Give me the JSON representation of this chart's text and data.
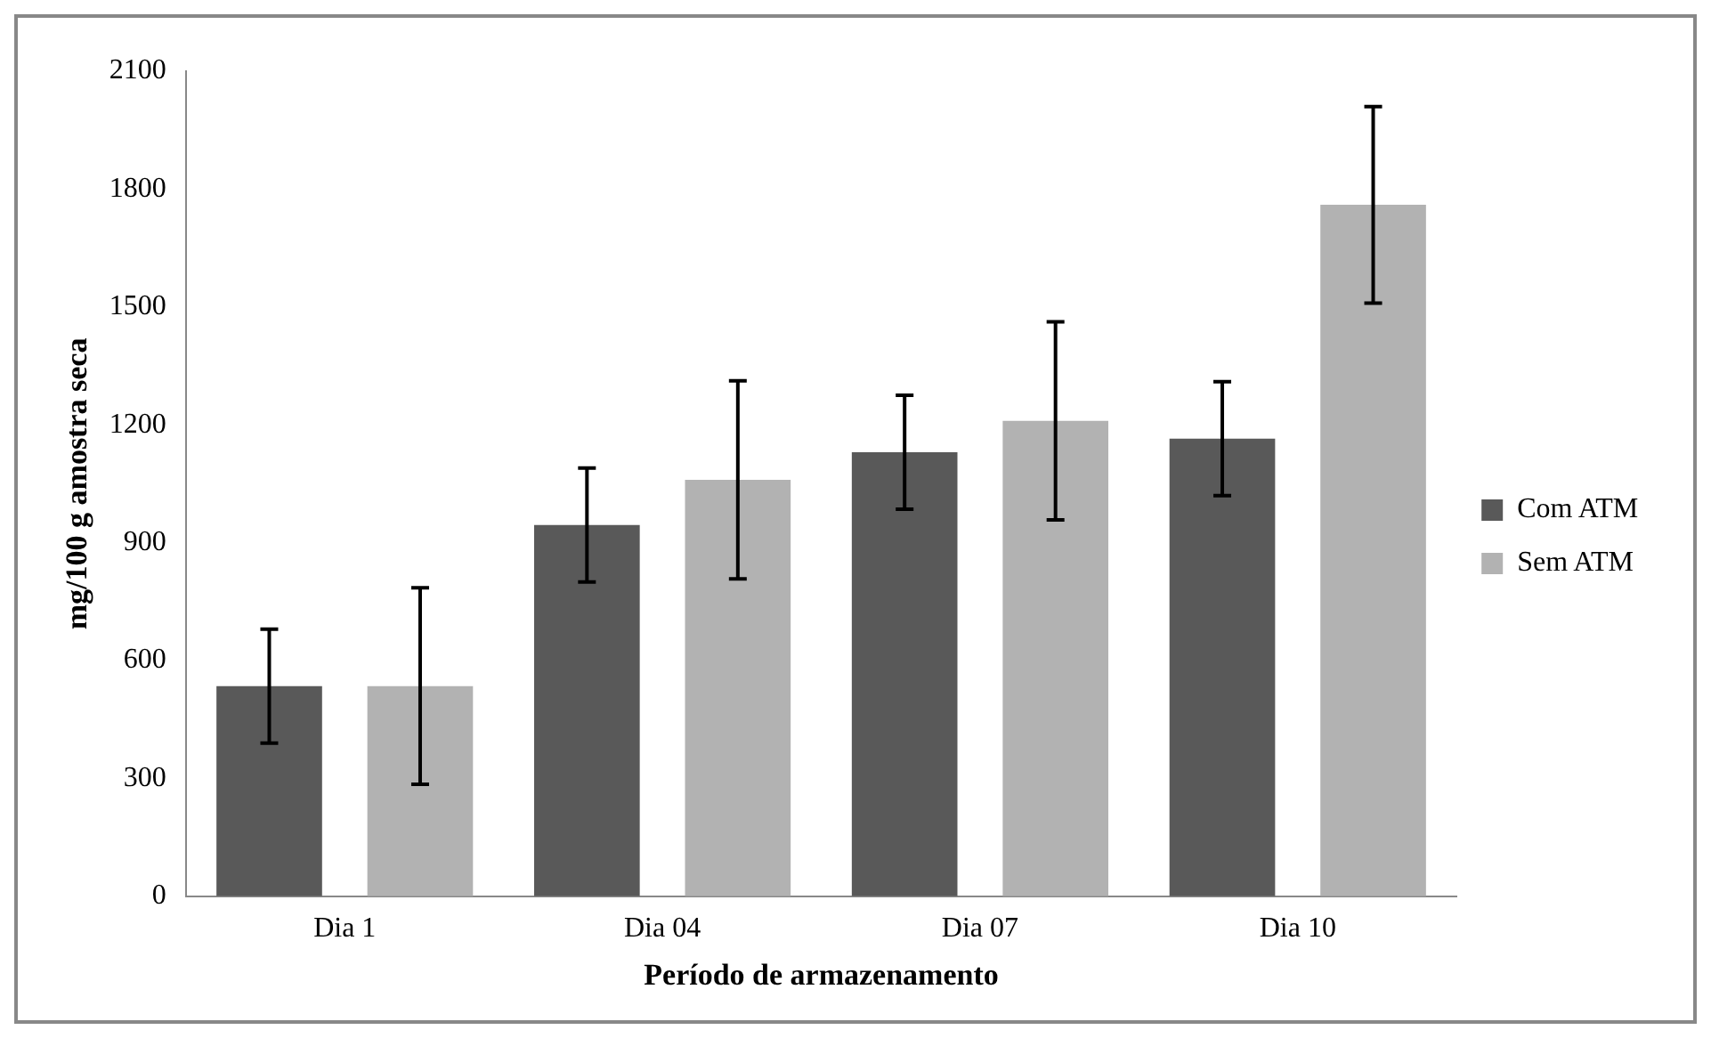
{
  "chart_data": {
    "type": "bar",
    "xlabel": "Período de armazenamento",
    "ylabel": "mg/100 g amostra seca",
    "categories": [
      "Dia 1",
      "Dia 04",
      "Dia 07",
      "Dia 10"
    ],
    "series": [
      {
        "name": "Com ATM",
        "color": "#595959",
        "values": [
          535,
          945,
          1130,
          1165
        ],
        "errors": [
          145,
          145,
          145,
          145
        ]
      },
      {
        "name": "Sem ATM",
        "color": "#b2b2b2",
        "values": [
          535,
          1060,
          1210,
          1760
        ],
        "errors": [
          250,
          252,
          252,
          250
        ]
      }
    ],
    "ylim": [
      0,
      2100
    ],
    "yticks": [
      0,
      300,
      600,
      900,
      1200,
      1500,
      1800,
      2100
    ],
    "grid": false,
    "legend": "right"
  }
}
